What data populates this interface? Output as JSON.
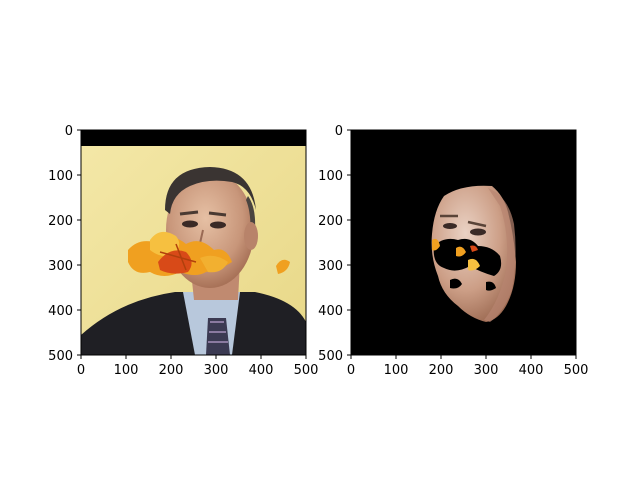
{
  "chart_data": [
    {
      "type": "image",
      "title": "",
      "xlabel": "",
      "ylabel": "",
      "xlim": [
        0,
        500
      ],
      "ylim": [
        500,
        0
      ],
      "xticks": [
        0,
        100,
        200,
        300,
        400,
        500
      ],
      "yticks": [
        0,
        100,
        200,
        300,
        400,
        500
      ],
      "content": "face photo with autumn leaf occlusion over the mouth area, black band at top",
      "colors": {
        "background": "#f2e49c",
        "band": "#000000",
        "suit": "#1f1f24",
        "shirt": "#b8c8dc",
        "leaf": "#f0a020"
      }
    },
    {
      "type": "image",
      "title": "",
      "xlabel": "",
      "ylabel": "",
      "xlim": [
        0,
        500
      ],
      "ylim": [
        500,
        0
      ],
      "xticks": [
        0,
        100,
        200,
        300,
        400,
        500
      ],
      "yticks": [
        0,
        100,
        200,
        300,
        400,
        500
      ],
      "content": "segmented face region on black background with occluded holes",
      "colors": {
        "background": "#000000",
        "skin": "#d6a68a",
        "leaf": "#f0a020"
      }
    }
  ]
}
